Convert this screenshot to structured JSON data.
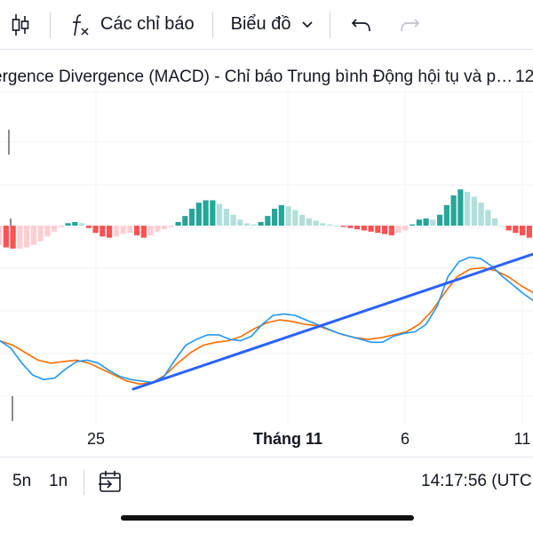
{
  "toolbar": {
    "candles_icon": "candlestick-icon",
    "indicators_label": "Các chỉ báo",
    "chart_type_label": "Biểu đồ",
    "undo_icon": "undo-icon",
    "redo_icon": "redo-icon"
  },
  "legend": {
    "text": "ergence Divergence (MACD) - Chỉ báo Trung bình Động hội tụ và p…",
    "right": "12"
  },
  "xaxis": {
    "labels": [
      "25",
      "Tháng 11",
      "6",
      "11"
    ]
  },
  "bottom": {
    "range_5n": "5n",
    "range_1n": "1n",
    "goto_icon": "goto-date-icon",
    "time": "14:17:56 (UTC"
  },
  "colors": {
    "macd_line": "#2196f3",
    "signal_line": "#ff6d00",
    "trend_line": "#2962ff",
    "hist_pos_strong": "#26a69a",
    "hist_pos_weak": "#b2dfdb",
    "hist_neg_strong": "#ff5252",
    "hist_neg_weak": "#ffcdd2"
  },
  "chart_data": {
    "type": "bar",
    "title": "MACD",
    "histogram": [
      -3.2,
      -3.6,
      -3.8,
      -3.8,
      -3.6,
      -3.2,
      -2.6,
      -1.8,
      -1.0,
      -0.2,
      0.4,
      0.6,
      0.4,
      -0.4,
      -1.2,
      -1.8,
      -2.0,
      -1.8,
      -1.4,
      -1.2,
      -1.6,
      -2.0,
      -1.6,
      -1.0,
      -0.6,
      -0.2,
      0.6,
      1.6,
      2.8,
      3.8,
      4.2,
      4.2,
      3.6,
      2.8,
      1.8,
      1.0,
      0.4,
      0.2,
      0.6,
      1.6,
      2.8,
      3.4,
      3.2,
      2.6,
      1.8,
      1.2,
      0.8,
      0.4,
      0.2,
      0.0,
      -0.2,
      -0.4,
      -0.6,
      -0.8,
      -1.0,
      -1.2,
      -1.4,
      -1.6,
      -1.2,
      -0.8,
      0.2,
      1.0,
      1.2,
      1.0,
      1.8,
      3.4,
      5.0,
      6.0,
      5.6,
      4.8,
      3.8,
      2.6,
      1.2,
      0.0,
      -0.8,
      -1.2,
      -1.6,
      -2.0
    ],
    "macd": [
      1.0,
      0.0,
      -2.0,
      -3.6,
      -4.2,
      -4.0,
      -2.8,
      -1.8,
      -1.6,
      -2.0,
      -3.0,
      -3.8,
      -4.2,
      -4.4,
      -4.6,
      -3.8,
      -1.6,
      0.4,
      1.2,
      1.8,
      1.8,
      1.2,
      1.0,
      1.6,
      3.2,
      4.4,
      4.6,
      4.4,
      3.8,
      3.2,
      2.6,
      2.0,
      1.6,
      1.2,
      0.8,
      0.8,
      1.6,
      2.0,
      2.2,
      3.2,
      5.6,
      9.6,
      11.6,
      12.2,
      12.0,
      11.0,
      9.6,
      8.4,
      7.2,
      6.2
    ],
    "signal": [
      1.0,
      0.4,
      -0.6,
      -1.6,
      -2.0,
      -1.8,
      -1.6,
      -2.0,
      -2.8,
      -3.6,
      -4.4,
      -4.8,
      -4.6,
      -3.6,
      -2.0,
      -0.6,
      0.4,
      0.8,
      1.0,
      1.6,
      2.6,
      3.4,
      3.8,
      3.6,
      3.2,
      3.0,
      2.4,
      1.8,
      1.4,
      1.2,
      1.4,
      1.8,
      2.2,
      3.2,
      5.0,
      7.4,
      9.6,
      10.6,
      10.8,
      10.4,
      9.6,
      8.4,
      7.4
    ],
    "trend_line": {
      "from": [
        25.5,
        -4.9
      ],
      "to": [
        11.3,
        9.2
      ]
    }
  }
}
